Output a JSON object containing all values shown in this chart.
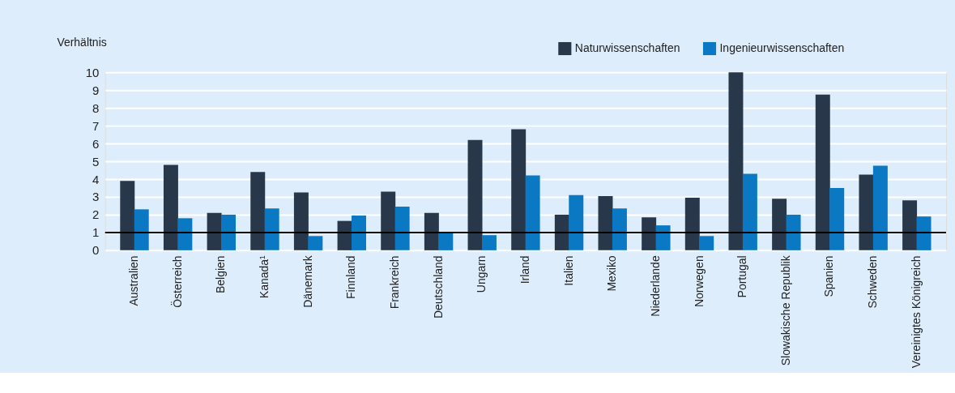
{
  "chart_data": {
    "type": "bar",
    "ylabel": "Verhältnis",
    "categories": [
      "Australien",
      "Österreich",
      "Belgien",
      "Kanada¹",
      "Dänemark",
      "Finnland",
      "Frankreich",
      "Deutschland",
      "Ungarn",
      "Irland",
      "Italien",
      "Mexiko",
      "Niederlande",
      "Norwegen",
      "Portugal",
      "Slowakische Republik",
      "Spanien",
      "Schweden",
      "Vereinigtes Königreich"
    ],
    "series": [
      {
        "name": "Naturwissenschaften",
        "color": "#28384a",
        "values": [
          3.9,
          4.8,
          2.1,
          4.4,
          3.25,
          1.65,
          3.3,
          2.1,
          6.2,
          6.8,
          2.0,
          3.05,
          1.85,
          2.95,
          10.0,
          2.9,
          8.75,
          4.25,
          2.8
        ]
      },
      {
        "name": "Ingenieurwissenschaften",
        "color": "#0a78c2",
        "values": [
          2.3,
          1.8,
          2.0,
          2.35,
          0.8,
          1.95,
          2.45,
          0.95,
          0.85,
          4.2,
          3.1,
          2.35,
          1.4,
          0.8,
          4.3,
          2.0,
          3.5,
          4.75,
          1.9
        ]
      }
    ],
    "ylim": [
      0,
      10
    ],
    "yticks": [
      0,
      1,
      2,
      3,
      4,
      5,
      6,
      7,
      8,
      9,
      10
    ],
    "ref_lines": [
      {
        "axis": "y",
        "value": 1,
        "color": "#000000"
      }
    ],
    "grid": "y",
    "legend": "top right"
  }
}
